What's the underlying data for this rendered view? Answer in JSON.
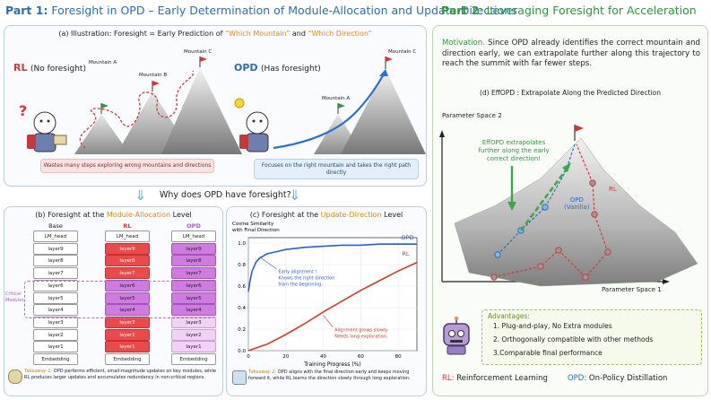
{
  "part1": {
    "label": "Part 1:",
    "title": " Foresight in OPD – Early Determination of Module-Allocation and Update-Directions"
  },
  "part2": {
    "label": "Part 2",
    "title": ": Leveraging Foresight for Acceleration"
  },
  "illustration": {
    "caption_pre": "(a) Illustration: Foresight = Early Prediction of ",
    "caption_q1": "“Which Mountain”",
    "caption_mid": " and ",
    "caption_q2": "“Which Direction”",
    "rl_label": "RL",
    "rl_note": "(No foresight)",
    "opd_label": "OPD",
    "opd_note": "(Has foresight)",
    "mountain_a": "Mountain A",
    "mountain_b": "Mountain B",
    "mountain_c": "Mountain C",
    "rl_box": "Wastes many steps exploring wrong mountains and directions",
    "opd_box": "Focuses on the right mountain and takes the right path directly"
  },
  "why": "Why does OPD have foresight?",
  "module_panel": {
    "caption_pre": "(b) Foresight at the ",
    "caption_hl": "Module-Allocation",
    "caption_post": " Level",
    "col_base": "Base",
    "col_rl": "RL",
    "col_opd": "OPD",
    "layers": [
      "LM_head",
      "layer9",
      "layer8",
      "layer7",
      "layer6",
      "layer5",
      "layer4",
      "layer3",
      "layer2",
      "layer1",
      "Embedding"
    ],
    "critical": "Critical Modules",
    "takeaway_label": "Takeaway 1:",
    "takeaway": " OPD performs efficient, small-magnitude updates on key modules, while RL produces larger updates and accumulates redundancy in non-critical regions."
  },
  "direction_panel": {
    "caption_pre": "(c) Foresight at the ",
    "caption_hl": "Update-Direction",
    "caption_post": " Level",
    "takeaway_label": "Takeaway 2:",
    "takeaway": " OPD aligns with the final direction early and keeps moving forward it, while RL learns the direction slowly through long exploration."
  },
  "chart_data": {
    "type": "line",
    "ylabel": "Cosine Similarity with Final Direction",
    "xlabel": "Training Progress (%)",
    "xlim": [
      0,
      90
    ],
    "ylim": [
      0,
      1.05
    ],
    "xticks": [
      0,
      20,
      40,
      60,
      80
    ],
    "yticks": [
      0.0,
      0.2,
      0.4,
      0.6,
      0.8,
      1.0
    ],
    "series": [
      {
        "name": "OPD",
        "x": [
          0,
          1,
          2,
          4,
          6,
          8,
          10,
          15,
          20,
          30,
          40,
          50,
          60,
          70,
          80,
          90
        ],
        "y": [
          0.55,
          0.66,
          0.74,
          0.82,
          0.86,
          0.88,
          0.9,
          0.92,
          0.94,
          0.96,
          0.97,
          0.98,
          0.98,
          0.99,
          0.99,
          0.99
        ]
      },
      {
        "name": "RL",
        "x": [
          0,
          10,
          20,
          30,
          40,
          50,
          60,
          70,
          80,
          90
        ],
        "y": [
          0.0,
          0.06,
          0.15,
          0.25,
          0.36,
          0.46,
          0.56,
          0.65,
          0.74,
          0.82
        ]
      }
    ],
    "annotations": {
      "opd": "Early alignment ! Knows the right direction from the beginning.",
      "rl": "Alignment grows slowly. Needs long exploration."
    }
  },
  "motivation": {
    "label": "Motivation.",
    "text": " Since OPD already identifies the correct mountain and direction early, we can extrapolate further along this trajectory to reach the summit with far fewer steps."
  },
  "effopd": {
    "caption": "(d) EffOPD : Extrapolate Along the Predicted Direction",
    "axis_y": "Parameter Space 2",
    "axis_x": "Parameter Space 1",
    "extrapolate": "EffOPD extrapolates further along the early correct direction!",
    "opd_label": "OPD",
    "opd_label2": "(Vanilla)",
    "rl_label": "RL"
  },
  "advantages": {
    "title": "Advantages:",
    "items": [
      "1. Plug-and-play, No Extra modules",
      "2.  Orthogonally compatible with other methods",
      "3.Comparable final performance"
    ]
  },
  "legend": {
    "rl_key": "RL:",
    "rl": " Reinforcement Learning",
    "opd_key": "OPD:",
    "opd": " On-Policy Distillation"
  },
  "colors": {
    "blue": "#2b6fb6",
    "green": "#2a9a3a",
    "red": "#cf3b3b",
    "orange": "#e58a16",
    "purple": "#b05ac4"
  }
}
